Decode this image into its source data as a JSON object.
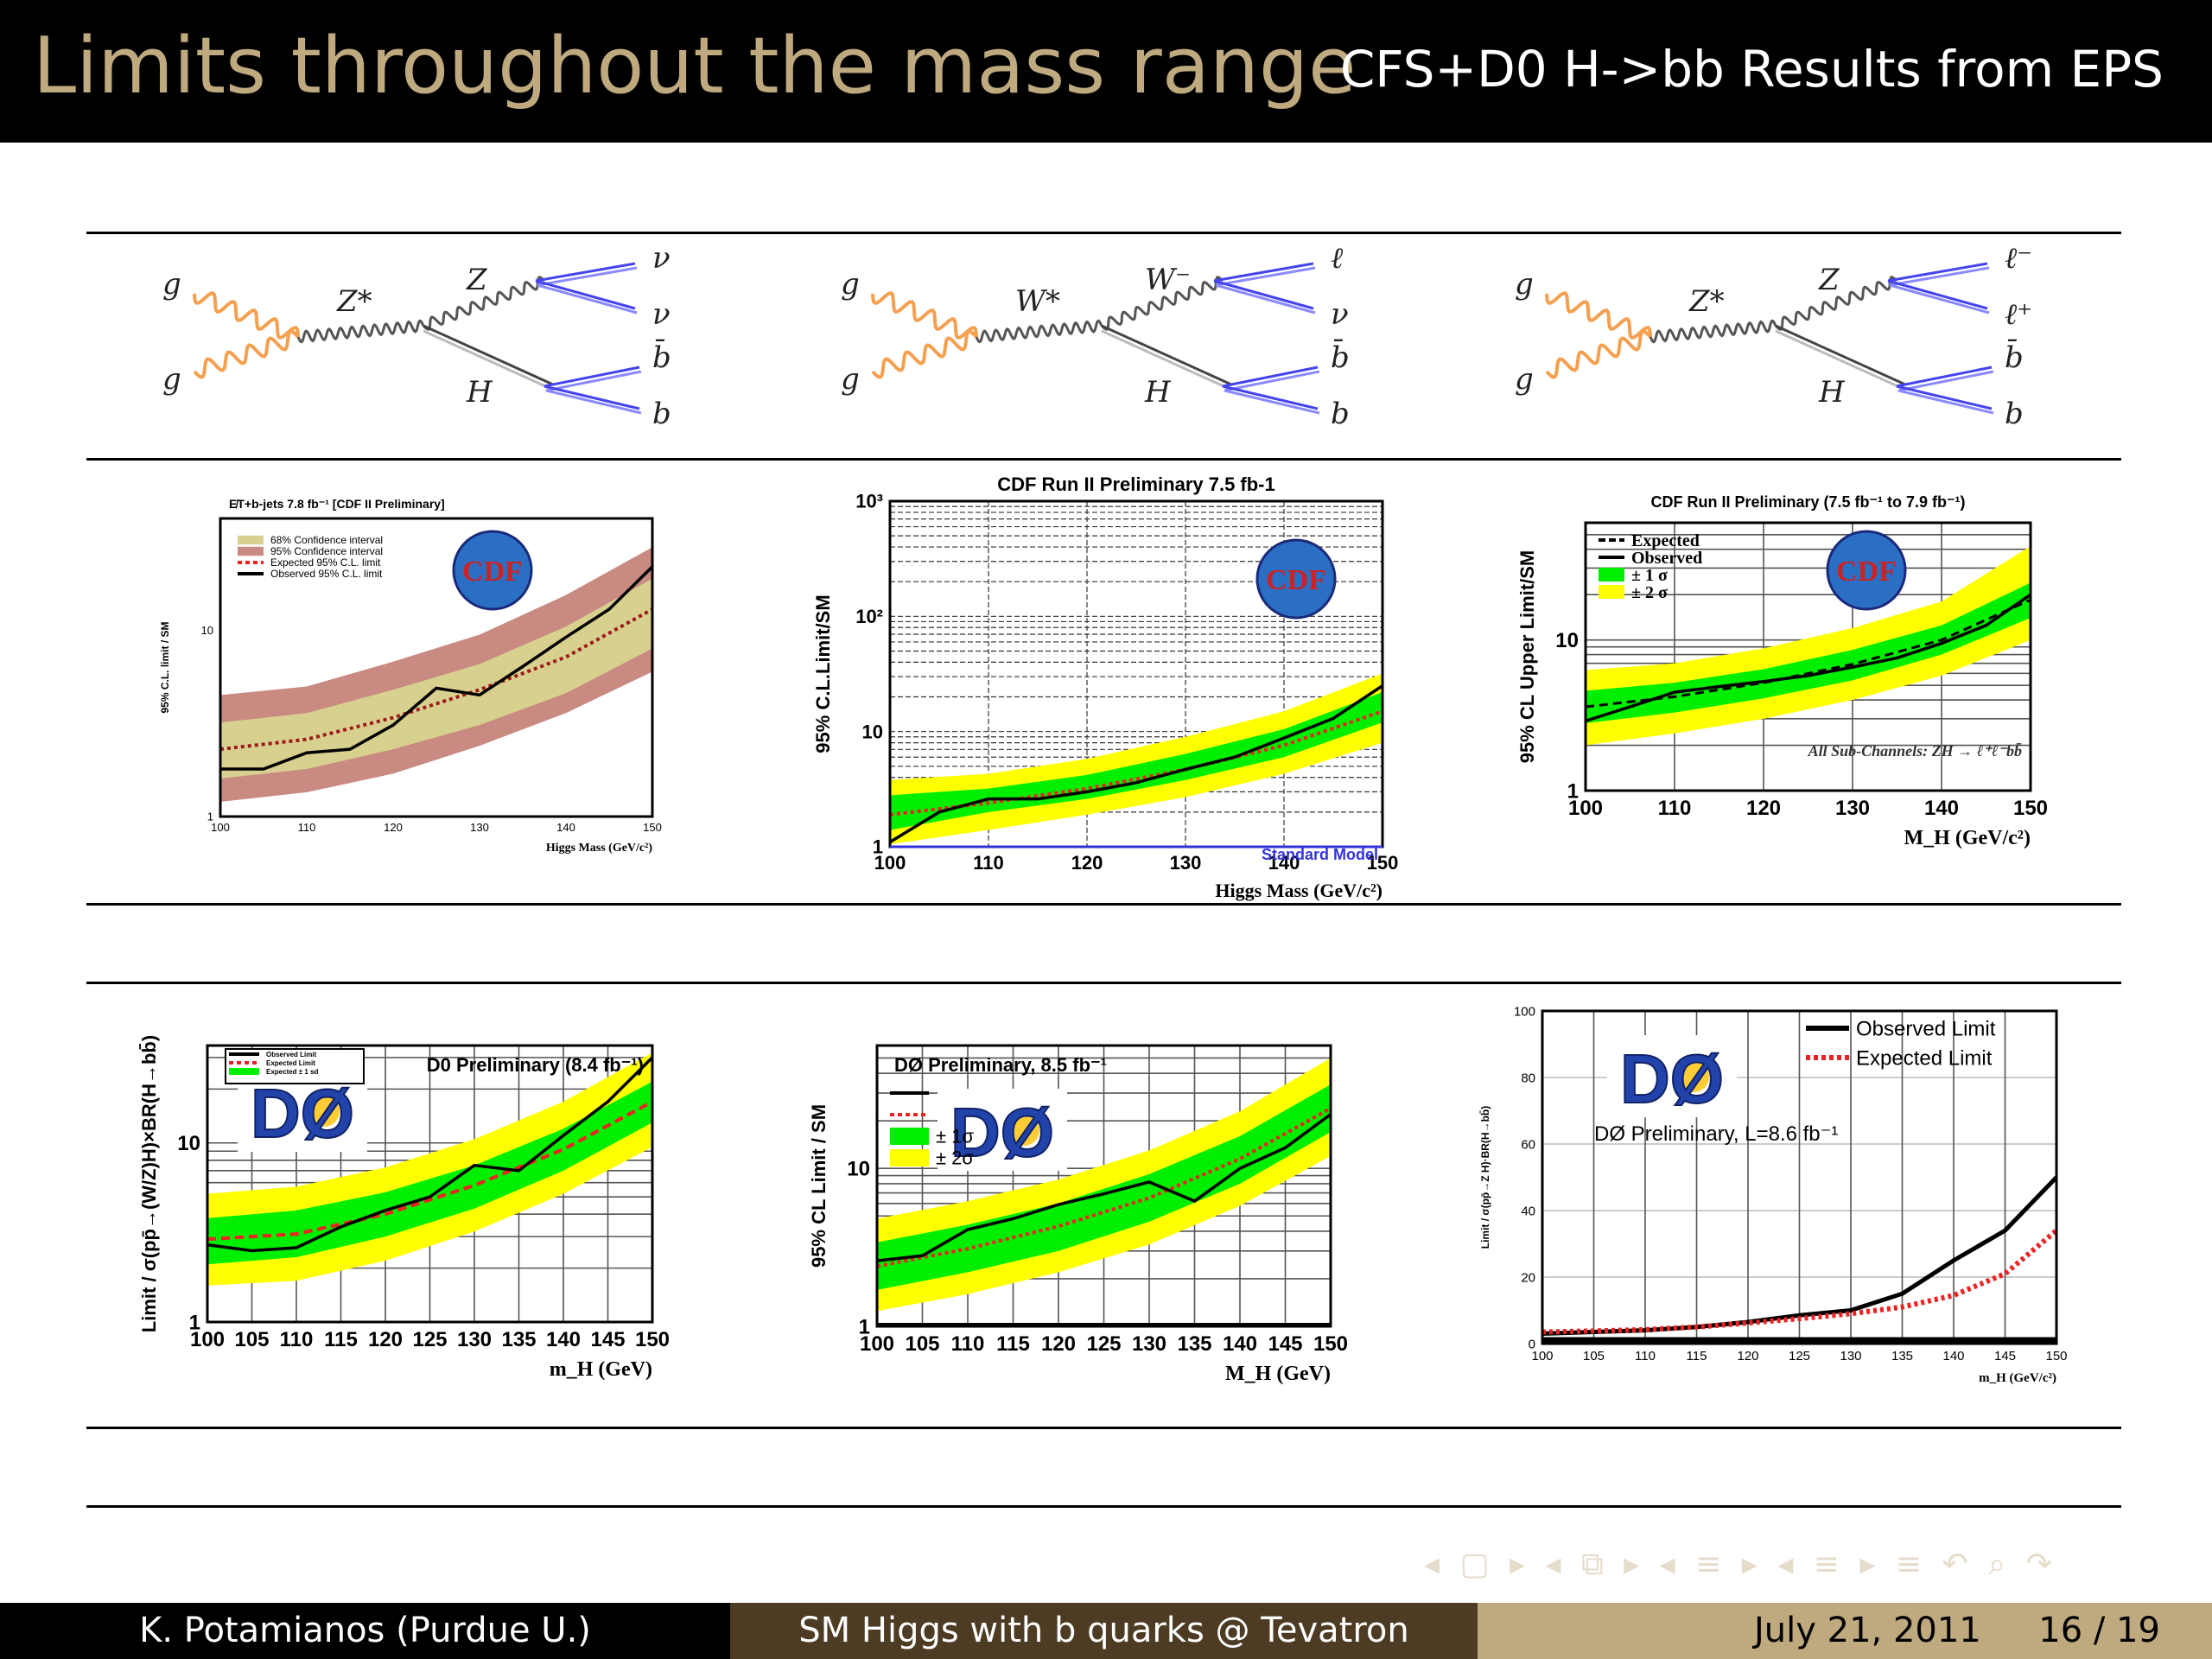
{
  "slide": {
    "title": "Limits throughout the mass range",
    "subtitle": "CFS+D0 H->bb Results from EPS"
  },
  "footer": {
    "author": "K. Potamianos  (Purdue U.)",
    "talk": "SM Higgs with b quarks @ Tevatron",
    "date": "July 21, 2011",
    "page": "16 / 19"
  },
  "nav_icons": [
    "frame-prev-icon",
    "frame-next-icon",
    "subsection-icon",
    "section-icon",
    "toc-icon",
    "search-icon",
    "back-forward-icon"
  ],
  "nav_symbols": "◂ ▢ ▸ ◂ ⧉ ▸ ◂ ≡ ▸ ◂ ≡ ▸  ≡  ↶ ⌕ ↷",
  "colors": {
    "title_gold": "#bfa97f",
    "footer_mid": "#4d3b23",
    "footer_right": "#bfa97f",
    "gluon_orange": "#f5a050",
    "fermion_blue": "#4444ee",
    "band_1sigma": "#00ee00",
    "band_2sigma": "#ffff00",
    "expected_red": "#ee2222"
  },
  "diagrams": [
    {
      "in1": "g",
      "in2": "g",
      "boson": "Z*",
      "v": "Z",
      "h": "H",
      "f1": "ν",
      "f2": "ν",
      "f3": "b̄",
      "f4": "b"
    },
    {
      "in1": "g",
      "in2": "g",
      "boson": "W*",
      "v": "W⁻",
      "h": "H",
      "f1": "ℓ",
      "f2": "ν",
      "f3": "b̄",
      "f4": "b"
    },
    {
      "in1": "g",
      "in2": "g",
      "boson": "Z*",
      "v": "Z",
      "h": "H",
      "f1": "ℓ⁻",
      "f2": "ℓ⁺",
      "f3": "b̄",
      "f4": "b"
    }
  ],
  "chart_data": [
    {
      "type": "line",
      "title": "E̸T+b-jets 7.8 fb⁻¹ [CDF II Preliminary]",
      "xlabel": "Higgs Mass (GeV/c²)",
      "ylabel": "95% C.L. limit / SM",
      "yscale": "log",
      "xlim": [
        100,
        150
      ],
      "ylim": [
        1,
        40
      ],
      "xticks": [
        "100",
        "110",
        "120",
        "130",
        "140",
        "150"
      ],
      "yticks": [
        "1",
        "10"
      ],
      "logo": "CDF",
      "legend": [
        "68% Confidence interval",
        "95% Confidence interval",
        "Expected 95% C.L. limit",
        "Observed 95% C.L. limit"
      ],
      "legend_placement": "top-left",
      "bands": {
        "style": "cdf",
        "x": [
          100,
          110,
          120,
          130,
          140,
          150
        ],
        "inner_lo": [
          1.6,
          1.8,
          2.3,
          3.1,
          4.6,
          8.0
        ],
        "inner_hi": [
          3.2,
          3.6,
          4.8,
          6.6,
          10.5,
          19.0
        ],
        "outer_lo": [
          1.2,
          1.35,
          1.7,
          2.4,
          3.6,
          6.0
        ],
        "outer_hi": [
          4.5,
          5.0,
          6.8,
          9.5,
          15.5,
          28.0
        ]
      },
      "series": [
        {
          "name": "Expected 95% C.L. limit",
          "style": "red-dotted",
          "x": [
            100,
            110,
            120,
            130,
            140,
            150
          ],
          "values": [
            2.3,
            2.6,
            3.4,
            4.8,
            7.2,
            13.0
          ]
        },
        {
          "name": "Observed 95% C.L. limit",
          "style": "black",
          "x": [
            100,
            105,
            110,
            115,
            120,
            125,
            130,
            135,
            140,
            145,
            150
          ],
          "values": [
            1.8,
            1.8,
            2.2,
            2.3,
            3.1,
            4.9,
            4.5,
            6.4,
            9.2,
            13.0,
            22.0
          ]
        }
      ]
    },
    {
      "type": "line",
      "title": "CDF Run II Preliminary 7.5 fb-1",
      "xlabel": "Higgs Mass (GeV/c²)",
      "ylabel": "95% C.L.Limit/SM",
      "yscale": "log",
      "xlim": [
        100,
        150
      ],
      "ylim": [
        1,
        1000
      ],
      "xticks": [
        "100",
        "110",
        "120",
        "130",
        "140",
        "150"
      ],
      "yticks": [
        "1",
        "10",
        "10²",
        "10³"
      ],
      "logo": "CDF",
      "legend": [],
      "legend_placement": "top-left",
      "annotation": "Standard Model",
      "bands": {
        "style": "gy",
        "x": [
          100,
          110,
          120,
          130,
          140,
          150
        ],
        "inner_lo": [
          1.4,
          2.0,
          2.6,
          3.8,
          6.0,
          12.0
        ],
        "inner_hi": [
          2.8,
          3.2,
          4.2,
          6.4,
          10.5,
          22.0
        ],
        "outer_lo": [
          1.05,
          1.4,
          1.9,
          2.7,
          4.3,
          8.0
        ],
        "outer_hi": [
          3.8,
          4.3,
          5.8,
          9.0,
          15.0,
          32.0
        ]
      },
      "series": [
        {
          "name": "",
          "style": "red-dotted",
          "x": [
            100,
            110,
            120,
            130,
            140,
            150
          ],
          "values": [
            1.9,
            2.4,
            3.2,
            4.7,
            7.6,
            15.0
          ]
        },
        {
          "name": "",
          "style": "black",
          "x": [
            100,
            105,
            110,
            115,
            120,
            125,
            130,
            135,
            140,
            145,
            150
          ],
          "values": [
            1.1,
            2.0,
            2.6,
            2.6,
            3.0,
            3.6,
            4.7,
            6.0,
            8.8,
            13.0,
            25.0
          ]
        }
      ]
    },
    {
      "type": "line",
      "title": "CDF Run II Preliminary (7.5 fb⁻¹ to 7.9 fb⁻¹)",
      "xlabel": "M_H (GeV/c²)",
      "ylabel": "95% CL Upper Limit/SM",
      "yscale": "log",
      "xlim": [
        100,
        150
      ],
      "ylim": [
        1,
        60
      ],
      "xticks": [
        "100",
        "110",
        "120",
        "130",
        "140",
        "150"
      ],
      "yticks": [
        "1",
        "10"
      ],
      "logo": "CDF",
      "legend": [
        "Expected",
        "Observed",
        "± 1 σ",
        "± 2 σ"
      ],
      "legend_placement": "top-left",
      "annotation": "All Sub-Channels: ZH → ℓ⁺ℓ⁻bb̄",
      "bands": {
        "style": "gy",
        "x": [
          100,
          110,
          120,
          130,
          140,
          150
        ],
        "inner_lo": [
          2.8,
          3.3,
          4.1,
          5.4,
          8.0,
          14.0
        ],
        "inner_hi": [
          4.6,
          5.2,
          6.4,
          8.6,
          12.5,
          24.0
        ],
        "outer_lo": [
          2.0,
          2.4,
          3.0,
          4.0,
          5.8,
          10.0
        ],
        "outer_hi": [
          6.3,
          7.0,
          8.8,
          12.0,
          18.0,
          42.0
        ]
      },
      "series": [
        {
          "name": "Expected",
          "style": "black-dashed",
          "x": [
            100,
            110,
            120,
            130,
            140,
            150
          ],
          "values": [
            3.6,
            4.2,
            5.2,
            6.9,
            10.0,
            18.5
          ]
        },
        {
          "name": "Observed",
          "style": "black",
          "x": [
            100,
            105,
            110,
            115,
            120,
            125,
            130,
            135,
            140,
            145,
            150
          ],
          "values": [
            2.9,
            3.6,
            4.5,
            4.9,
            5.3,
            5.8,
            6.6,
            7.6,
            9.5,
            12.5,
            20.0
          ]
        }
      ]
    },
    {
      "type": "line",
      "title": "D0 Preliminary (8.4 fb⁻¹)",
      "xlabel": "m_H (GeV)",
      "ylabel": "Limit / σ(pp̄→(W/Z)H)×BR(H→bb̄)",
      "yscale": "log",
      "xlim": [
        100,
        150
      ],
      "ylim": [
        1,
        35
      ],
      "xticks": [
        "100",
        "105",
        "110",
        "115",
        "120",
        "125",
        "130",
        "135",
        "140",
        "145",
        "150"
      ],
      "yticks": [
        "1",
        "10"
      ],
      "logo": "DØ",
      "legend": [
        "Observed Limit",
        "Expected Limit",
        "Expected ± 1 sd"
      ],
      "legend_placement": "top-left",
      "bands": {
        "style": "gy",
        "x": [
          100,
          110,
          120,
          130,
          140,
          150
        ],
        "inner_lo": [
          2.1,
          2.3,
          3.0,
          4.3,
          7.0,
          13.0
        ],
        "inner_hi": [
          3.8,
          4.2,
          5.3,
          7.5,
          12.0,
          22.0
        ],
        "outer_lo": [
          1.6,
          1.7,
          2.2,
          3.2,
          5.2,
          9.5
        ],
        "outer_hi": [
          5.2,
          5.7,
          7.3,
          10.5,
          17.0,
          32.0
        ]
      },
      "series": [
        {
          "name": "Expected Limit",
          "style": "red-dashed",
          "x": [
            100,
            110,
            120,
            130,
            140,
            150
          ],
          "values": [
            2.9,
            3.1,
            4.0,
            5.8,
            9.2,
            17.0
          ]
        },
        {
          "name": "Observed Limit",
          "style": "black",
          "x": [
            100,
            105,
            110,
            115,
            120,
            125,
            130,
            135,
            140,
            145,
            150
          ],
          "values": [
            2.7,
            2.5,
            2.6,
            3.4,
            4.2,
            5.0,
            7.5,
            7.0,
            11.0,
            17.0,
            30.0
          ]
        }
      ]
    },
    {
      "type": "line",
      "title": "DØ Preliminary, 8.5 fb⁻¹",
      "xlabel": "M_H (GeV)",
      "ylabel": "95% CL Limit / SM",
      "yscale": "log",
      "xlim": [
        100,
        150
      ],
      "ylim": [
        1,
        60
      ],
      "xticks": [
        "100",
        "105",
        "110",
        "115",
        "120",
        "125",
        "130",
        "135",
        "140",
        "145",
        "150"
      ],
      "yticks": [
        "1",
        "10"
      ],
      "logo": "DØ",
      "legend": [
        "",
        "",
        "± 1σ",
        "± 2σ"
      ],
      "legend_placement": "top-left",
      "bands": {
        "style": "gy",
        "x": [
          100,
          110,
          120,
          130,
          140,
          150
        ],
        "inner_lo": [
          1.7,
          2.2,
          3.0,
          4.6,
          8.0,
          17.0
        ],
        "inner_hi": [
          3.4,
          4.4,
          6.0,
          9.2,
          16.0,
          34.0
        ],
        "outer_lo": [
          1.25,
          1.6,
          2.2,
          3.3,
          5.8,
          12.0
        ],
        "outer_hi": [
          4.8,
          6.2,
          8.5,
          13.0,
          23.0,
          50.0
        ]
      },
      "series": [
        {
          "name": "",
          "style": "red-dotted",
          "x": [
            100,
            110,
            120,
            130,
            140,
            150
          ],
          "values": [
            2.4,
            3.1,
            4.3,
            6.5,
            11.5,
            24.0
          ]
        },
        {
          "name": "",
          "style": "black",
          "x": [
            100,
            105,
            110,
            115,
            120,
            125,
            130,
            135,
            140,
            145,
            150
          ],
          "values": [
            2.6,
            2.8,
            4.1,
            4.8,
            5.9,
            6.9,
            8.2,
            6.2,
            10.0,
            13.5,
            22.0
          ]
        }
      ]
    },
    {
      "type": "line",
      "title": "DØ Preliminary, L=8.6 fb⁻¹",
      "xlabel": "m_H (GeV/c²)",
      "ylabel": "Limit / σ(pp̄→Z H)·BR(H→bb̄)",
      "yscale": "linear",
      "xlim": [
        100,
        150
      ],
      "ylim": [
        0,
        100
      ],
      "xticks": [
        "100",
        "105",
        "110",
        "115",
        "120",
        "125",
        "130",
        "135",
        "140",
        "145",
        "150"
      ],
      "yticks": [
        "0",
        "20",
        "40",
        "60",
        "80",
        "100"
      ],
      "logo": "DØ",
      "legend": [
        "Observed Limit",
        "Expected Limit"
      ],
      "legend_placement": "top-right",
      "series": [
        {
          "name": "Observed Limit",
          "style": "black",
          "x": [
            100,
            105,
            110,
            115,
            120,
            125,
            130,
            135,
            140,
            145,
            150
          ],
          "values": [
            3,
            3.5,
            4,
            5,
            6.5,
            8.5,
            10,
            15,
            25,
            34,
            50
          ]
        },
        {
          "name": "Expected Limit",
          "style": "red-dotted",
          "x": [
            100,
            105,
            110,
            115,
            120,
            125,
            130,
            135,
            140,
            145,
            150
          ],
          "values": [
            3.5,
            3.8,
            4.2,
            5,
            6.2,
            7.5,
            9,
            11,
            14.5,
            21,
            34
          ]
        }
      ]
    }
  ]
}
